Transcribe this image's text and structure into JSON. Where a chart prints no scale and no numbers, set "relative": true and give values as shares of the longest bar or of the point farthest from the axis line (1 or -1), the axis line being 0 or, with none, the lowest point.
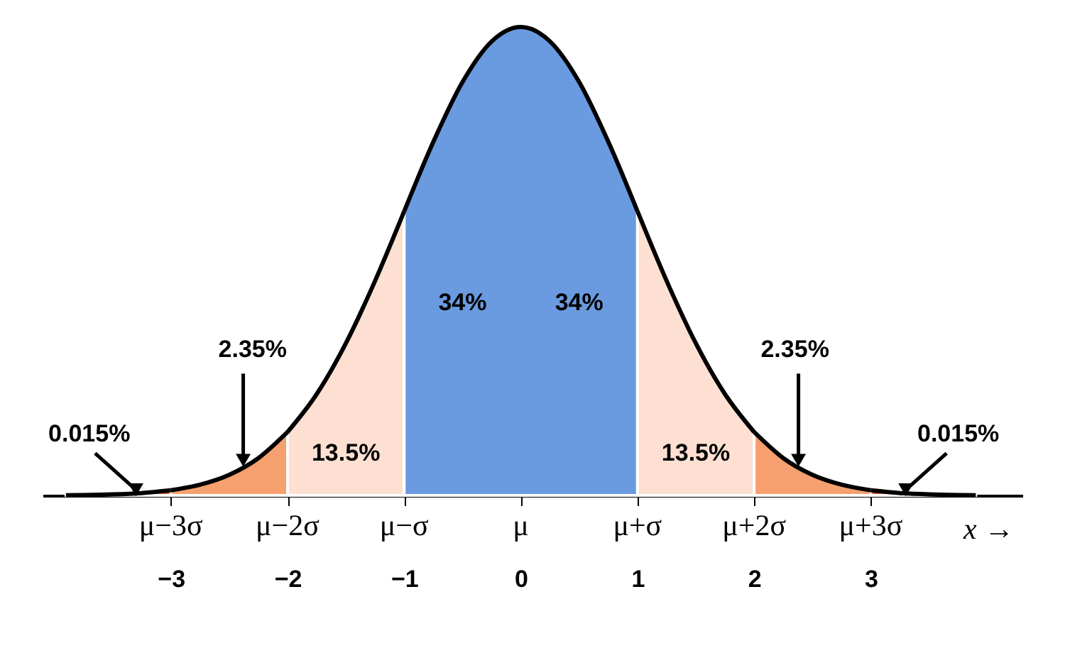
{
  "chart_data": {
    "type": "area",
    "relative": true,
    "xlabel": "x →",
    "xlim": [
      -4.1,
      4.3
    ],
    "xticks": [
      -3,
      -2,
      -1,
      0,
      1,
      2,
      3
    ],
    "series": [
      {
        "color": "#e8501a",
        "x": [
          -3.9,
          -3.75,
          -3.5,
          -3.25,
          -3
        ],
        "values": [
          0.0005,
          0.0009,
          0.0022,
          0.0051,
          0.0111
        ]
      },
      {
        "color": "#f5a06e",
        "x": [
          -3,
          -2.75,
          -2.5,
          -2.25,
          -2
        ],
        "values": [
          0.0111,
          0.0228,
          0.0439,
          0.0796,
          0.1353
        ]
      },
      {
        "color": "#fde0d2",
        "x": [
          -2,
          -1.75,
          -1.5,
          -1.25,
          -1
        ],
        "values": [
          0.1353,
          0.2163,
          0.3247,
          0.4578,
          0.6065
        ]
      },
      {
        "color": "#6a9be0",
        "x": [
          -1,
          -0.75,
          -0.5,
          -0.25,
          0,
          0.25,
          0.5,
          0.75,
          1
        ],
        "values": [
          0.6065,
          0.7548,
          0.8825,
          0.9692,
          1,
          0.9692,
          0.8825,
          0.7548,
          0.6065
        ]
      },
      {
        "color": "#fde0d2",
        "x": [
          1,
          1.25,
          1.5,
          1.75,
          2
        ],
        "values": [
          0.6065,
          0.4578,
          0.3247,
          0.2163,
          0.1353
        ]
      },
      {
        "color": "#f5a06e",
        "x": [
          2,
          2.25,
          2.5,
          2.75,
          3
        ],
        "values": [
          0.1353,
          0.0796,
          0.0439,
          0.0228,
          0.0111
        ]
      },
      {
        "color": "#e8501a",
        "x": [
          3,
          3.25,
          3.5,
          3.75,
          3.9
        ],
        "values": [
          0.0111,
          0.0051,
          0.0022,
          0.0009,
          0.0005
        ]
      }
    ],
    "annotations": [
      "34%",
      "34%",
      "13.5%",
      "13.5%",
      "2.35%",
      "2.35%",
      "0.015%",
      "0.015%",
      {
        "text": "μ−3σ",
        "x": -3
      },
      {
        "text": "μ−2σ",
        "x": -2
      },
      {
        "text": "μ−σ",
        "x": -1
      },
      {
        "text": "μ",
        "x": 0
      },
      {
        "text": "μ+σ",
        "x": 1
      },
      {
        "text": "μ+2σ",
        "x": 2
      },
      {
        "text": "μ+3σ",
        "x": 3
      }
    ]
  }
}
